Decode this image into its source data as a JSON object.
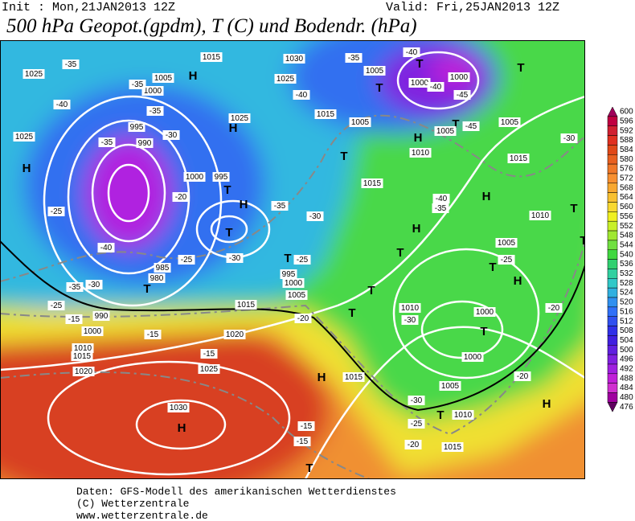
{
  "header": {
    "init": "Init : Mon,21JAN2013 12Z",
    "valid": "Valid: Fri,25JAN2013 12Z",
    "title": "500 hPa Geopot.(gpdm), T (C) und Bodendr. (hPa)"
  },
  "map": {
    "highs": [
      "H",
      "H",
      "H",
      "H",
      "H",
      "H",
      "H",
      "H",
      "H",
      "H",
      "H"
    ],
    "lows": [
      "T",
      "T",
      "T",
      "T",
      "T",
      "T",
      "T",
      "T",
      "T",
      "T",
      "T",
      "T",
      "T",
      "T",
      "T",
      "T",
      "T",
      "T"
    ],
    "pressure_labels": [
      "1030",
      "1025",
      "1015",
      "1005",
      "1000",
      "995",
      "990",
      "1025",
      "1025",
      "1015",
      "1005",
      "1005",
      "1000",
      "1000",
      "1005",
      "1010",
      "1005",
      "1015",
      "1010",
      "1005",
      "1015",
      "1025",
      "1000",
      "995",
      "985",
      "980",
      "995",
      "1000",
      "1005",
      "1015",
      "990",
      "1000",
      "1010",
      "1015",
      "1020",
      "1020",
      "1025",
      "1030",
      "1010",
      "1000",
      "1000",
      "1005",
      "1015",
      "1010",
      "1015"
    ],
    "temperature_labels": [
      "-35",
      "-35",
      "-40",
      "-35",
      "-35",
      "-30",
      "-25",
      "-40",
      "-35",
      "-30",
      "-25",
      "-15",
      "-15",
      "-20",
      "-25",
      "-30",
      "-35",
      "-30",
      "-25",
      "-20",
      "-15",
      "-15",
      "-15",
      "-40",
      "-35",
      "-40",
      "-40",
      "-45",
      "-45",
      "-30",
      "-40",
      "-35",
      "-25",
      "-20",
      "-30",
      "-20",
      "-30",
      "-25",
      "-20"
    ]
  },
  "colorbar": {
    "values": [
      600,
      596,
      592,
      588,
      584,
      580,
      576,
      572,
      568,
      564,
      560,
      556,
      552,
      548,
      544,
      540,
      536,
      532,
      528,
      524,
      520,
      516,
      512,
      508,
      504,
      500,
      496,
      492,
      488,
      484,
      480,
      476
    ],
    "colors": [
      "#a0005a",
      "#c00040",
      "#d02030",
      "#e03020",
      "#e04818",
      "#e86020",
      "#f07828",
      "#f89030",
      "#f8a830",
      "#f8c030",
      "#f8d830",
      "#f0f020",
      "#c8f028",
      "#a0e830",
      "#70e040",
      "#40d840",
      "#30d070",
      "#30d0a0",
      "#30c8c8",
      "#30b0e0",
      "#3090f0",
      "#3070f8",
      "#3050f0",
      "#3030e8",
      "#4020e0",
      "#6020e0",
      "#8020e0",
      "#a020e0",
      "#c020d8",
      "#d030d0",
      "#a000a0",
      "#600060"
    ]
  },
  "footer": {
    "source": "Daten: GFS-Modell des amerikanischen Wetterdienstes",
    "copyright": "(C) Wetterzentrale",
    "url": "www.wetterzentrale.de"
  }
}
